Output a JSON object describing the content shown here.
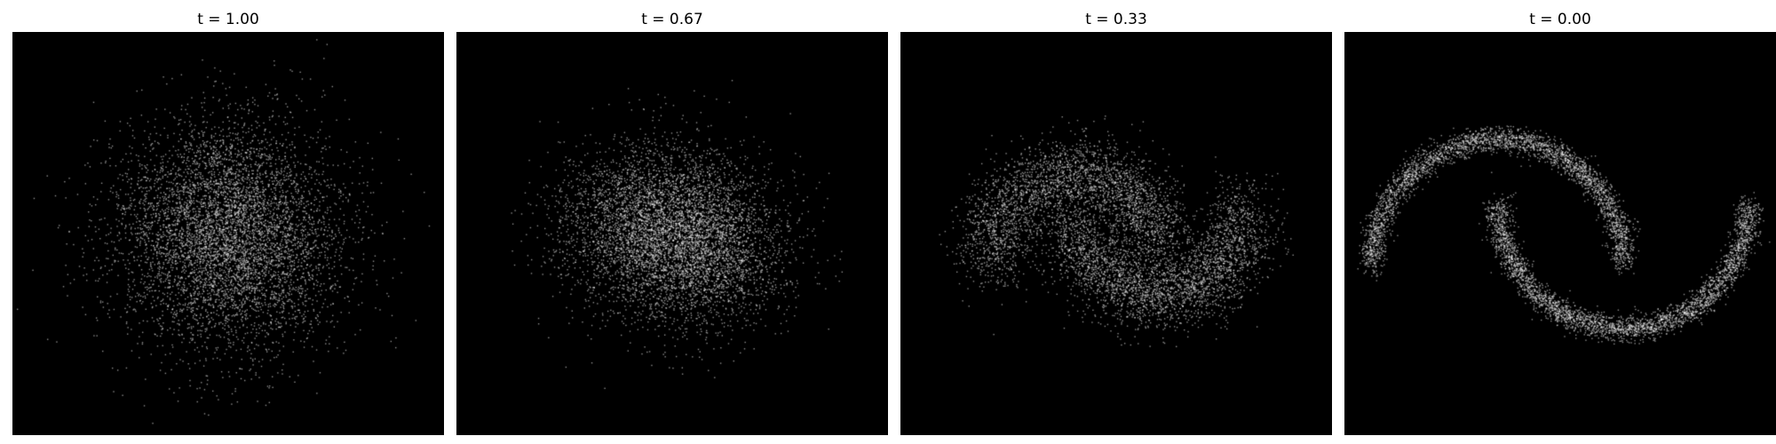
{
  "chart_data": [
    {
      "type": "scatter",
      "title": "t = 1.00",
      "t": 1.0,
      "background": "#000000",
      "point_color": "#ffffff",
      "axes_visible": false,
      "grid": false,
      "xlim": [
        -3.0,
        3.0
      ],
      "ylim": [
        -2.8,
        2.8
      ],
      "n_points": 6000,
      "description_of_distribution": "isotropic Gaussian noise centered near (0, 0)"
    },
    {
      "type": "scatter",
      "title": "t = 0.67",
      "t": 0.67,
      "background": "#000000",
      "point_color": "#ffffff",
      "axes_visible": false,
      "grid": false,
      "xlim": [
        -3.0,
        3.0
      ],
      "ylim": [
        -2.8,
        2.8
      ],
      "n_points": 6000
    },
    {
      "type": "scatter",
      "title": "t = 0.33",
      "t": 0.33,
      "background": "#000000",
      "point_color": "#ffffff",
      "axes_visible": false,
      "grid": false,
      "xlim": [
        -3.0,
        3.0
      ],
      "ylim": [
        -2.8,
        2.8
      ],
      "n_points": 6000
    },
    {
      "type": "scatter",
      "title": "t = 0.00",
      "t": 0.0,
      "background": "#000000",
      "point_color": "#ffffff",
      "axes_visible": false,
      "grid": false,
      "xlim": [
        -3.0,
        3.0
      ],
      "ylim": [
        -2.8,
        2.8
      ],
      "n_points": 6000
    }
  ]
}
